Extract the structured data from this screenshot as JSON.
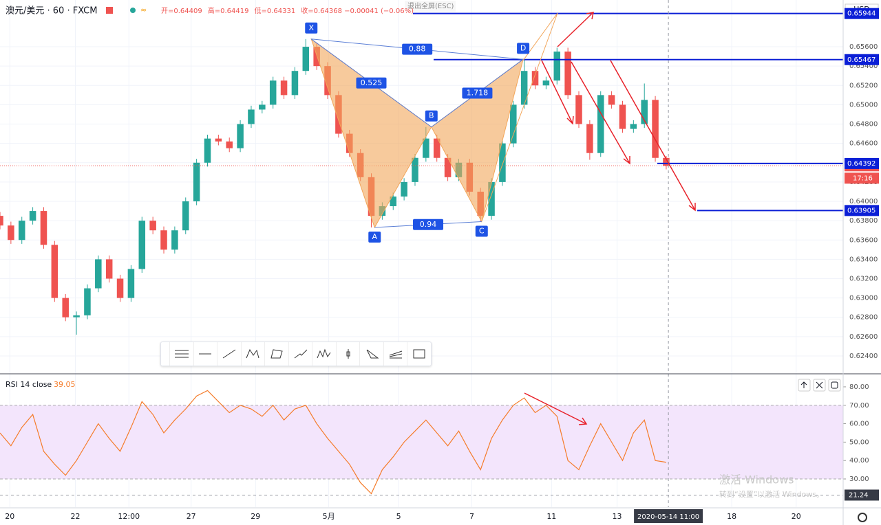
{
  "chart_data": [
    {
      "type": "candlestick",
      "title": "澳元/美元 · 60 · FXCM",
      "ohlc_text": [
        "开=0.64409",
        "高=0.64419",
        "低=0.64331",
        "收=0.64368 −0.00041 (−0.06%)"
      ],
      "exit_fullscreen": "退出全屏(ESC)",
      "currency": "USD",
      "xlim": [
        0,
        77.2
      ],
      "xticks": [
        {
          "value": 0.9,
          "label": "20"
        },
        {
          "value": 6.9,
          "label": "22"
        },
        {
          "value": 11.8,
          "label": "12:00"
        },
        {
          "value": 17.5,
          "label": "27"
        },
        {
          "value": 23.4,
          "label": "29"
        },
        {
          "value": 30.1,
          "label": "5月"
        },
        {
          "value": 36.5,
          "label": "5"
        },
        {
          "value": 43.2,
          "label": "7"
        },
        {
          "value": 50.5,
          "label": "11"
        },
        {
          "value": 56.5,
          "label": "13"
        },
        {
          "value": 67,
          "label": "18"
        },
        {
          "value": 72.9,
          "label": "20"
        }
      ],
      "ylim": [
        0.62222,
        0.66084
      ],
      "yticks": [
        {
          "value": 0.624,
          "label": "0.62400"
        },
        {
          "value": 0.626,
          "label": "0.62600"
        },
        {
          "value": 0.628,
          "label": "0.62800"
        },
        {
          "value": 0.63,
          "label": "0.63000"
        },
        {
          "value": 0.632,
          "label": "0.63200"
        },
        {
          "value": 0.634,
          "label": "0.63400"
        },
        {
          "value": 0.636,
          "label": "0.63600"
        },
        {
          "value": 0.638,
          "label": "0.63800"
        },
        {
          "value": 0.64,
          "label": "0.64000"
        },
        {
          "value": 0.642,
          "label": "0.64200"
        },
        {
          "value": 0.644,
          "label": "0.64400"
        },
        {
          "value": 0.646,
          "label": "0.64600"
        },
        {
          "value": 0.648,
          "label": "0.64800"
        },
        {
          "value": 0.65,
          "label": "0.65000"
        },
        {
          "value": 0.652,
          "label": "0.65200"
        },
        {
          "value": 0.654,
          "label": "0.65400"
        },
        {
          "value": 0.656,
          "label": "0.65600"
        }
      ],
      "grid": true,
      "up_color": "#26a69a",
      "down_color": "#ef5350",
      "open": [
        0.6385,
        0.6375,
        0.636,
        0.638,
        0.639,
        0.6355,
        0.63,
        0.628,
        0.6282,
        0.631,
        0.634,
        0.632,
        0.63,
        0.633,
        0.638,
        0.637,
        0.635,
        0.637,
        0.64,
        0.644,
        0.6465,
        0.6462,
        0.6455,
        0.648,
        0.6495,
        0.65,
        0.6525,
        0.651,
        0.6535,
        0.656,
        0.654,
        0.651,
        0.647,
        0.645,
        0.6425,
        0.6385,
        0.6395,
        0.6405,
        0.642,
        0.6445,
        0.6465,
        0.6445,
        0.6425,
        0.644,
        0.641,
        0.6385,
        0.642,
        0.646,
        0.65,
        0.6535,
        0.652,
        0.6525,
        0.6555,
        0.651,
        0.648,
        0.645,
        0.651,
        0.65,
        0.6475,
        0.648,
        0.6505,
        0.6445
      ],
      "high": [
        0.6389,
        0.6379,
        0.6384,
        0.6394,
        0.6394,
        0.6359,
        0.6304,
        0.6286,
        0.6314,
        0.6344,
        0.6344,
        0.6324,
        0.6334,
        0.6384,
        0.6384,
        0.6374,
        0.6374,
        0.6404,
        0.6444,
        0.6469,
        0.6469,
        0.6466,
        0.6484,
        0.6499,
        0.6504,
        0.6529,
        0.6529,
        0.6539,
        0.6568,
        0.6564,
        0.6544,
        0.6514,
        0.6474,
        0.6454,
        0.6429,
        0.6399,
        0.6409,
        0.6424,
        0.6449,
        0.6477,
        0.6469,
        0.6449,
        0.6444,
        0.6444,
        0.6414,
        0.6424,
        0.6464,
        0.6504,
        0.6547,
        0.6539,
        0.6529,
        0.6559,
        0.6559,
        0.6514,
        0.6484,
        0.6514,
        0.6514,
        0.6504,
        0.6484,
        0.6522,
        0.6509,
        0.6447
      ],
      "low": [
        0.6371,
        0.6356,
        0.6356,
        0.6376,
        0.6351,
        0.6296,
        0.6276,
        0.6262,
        0.6278,
        0.6306,
        0.6316,
        0.6296,
        0.6296,
        0.6326,
        0.6366,
        0.6346,
        0.6346,
        0.6366,
        0.6396,
        0.6436,
        0.6458,
        0.6451,
        0.6451,
        0.6476,
        0.6491,
        0.6496,
        0.6506,
        0.6506,
        0.6531,
        0.6536,
        0.6506,
        0.6466,
        0.6446,
        0.6421,
        0.6373,
        0.6381,
        0.6391,
        0.6401,
        0.6416,
        0.6441,
        0.6441,
        0.6421,
        0.6421,
        0.6406,
        0.6379,
        0.6381,
        0.6416,
        0.6456,
        0.6496,
        0.6516,
        0.6516,
        0.6521,
        0.6506,
        0.6476,
        0.6443,
        0.6446,
        0.6496,
        0.6471,
        0.6471,
        0.6476,
        0.6441,
        0.64331
      ],
      "close": [
        0.6375,
        0.636,
        0.638,
        0.639,
        0.6355,
        0.63,
        0.628,
        0.6282,
        0.631,
        0.634,
        0.632,
        0.63,
        0.633,
        0.638,
        0.637,
        0.635,
        0.637,
        0.64,
        0.644,
        0.6465,
        0.6462,
        0.6455,
        0.648,
        0.6495,
        0.65,
        0.6525,
        0.651,
        0.6535,
        0.656,
        0.654,
        0.651,
        0.647,
        0.645,
        0.6425,
        0.6385,
        0.6395,
        0.6405,
        0.642,
        0.6445,
        0.6465,
        0.6445,
        0.6425,
        0.644,
        0.641,
        0.6385,
        0.642,
        0.646,
        0.65,
        0.6535,
        0.652,
        0.6525,
        0.6555,
        0.651,
        0.648,
        0.645,
        0.651,
        0.65,
        0.6475,
        0.648,
        0.6505,
        0.6445,
        0.64368
      ],
      "last_price": 0.64368,
      "countdown": "17:16",
      "levels": [
        0.65944,
        0.65467,
        0.64392,
        0.63905
      ],
      "level_color": "#0b1fd6",
      "pattern": {
        "color": "#f2a65a",
        "label_color": "#1e53e5",
        "points": [
          {
            "label": "X",
            "x": 28.5,
            "y": 0.6568
          },
          {
            "label": "A",
            "x": 34.3,
            "y": 0.6373
          },
          {
            "label": "B",
            "x": 39.5,
            "y": 0.6477
          },
          {
            "label": "C",
            "x": 44.1,
            "y": 0.6379
          },
          {
            "label": "D",
            "x": 47.9,
            "y": 0.6547
          }
        ],
        "ratios": [
          0.88,
          0.525,
          1.718,
          0.94
        ]
      },
      "crosshair_x": 61.2,
      "crosshair_label": "2020-05-14   11:00"
    },
    {
      "type": "line",
      "title": "RSI 14 close",
      "color": "#f57c2a",
      "values": [
        55,
        48,
        58,
        65,
        45,
        38,
        32,
        40,
        50,
        60,
        52,
        45,
        58,
        72,
        65,
        55,
        62,
        68,
        75,
        78,
        72,
        66,
        70,
        68,
        64,
        70,
        62,
        68,
        70,
        60,
        52,
        45,
        38,
        28,
        22,
        35,
        42,
        50,
        56,
        62,
        55,
        48,
        56,
        45,
        35,
        52,
        62,
        70,
        74,
        66,
        70,
        64,
        40,
        35,
        48,
        60,
        50,
        40,
        55,
        62,
        40,
        39.05
      ],
      "ylim": [
        14.7,
        86.7
      ],
      "yticks": [
        {
          "value": 30,
          "label": "30.00"
        },
        {
          "value": 40,
          "label": "40.00"
        },
        {
          "value": 50,
          "label": "50.00"
        },
        {
          "value": 60,
          "label": "60.00"
        },
        {
          "value": 70,
          "label": "70.00"
        },
        {
          "value": 80,
          "label": "80.00"
        }
      ],
      "band": [
        30,
        70
      ],
      "band_color": "#f3e5fc",
      "crosshair_value": 21.24
    }
  ],
  "watermark": {
    "title": "激活 Windows",
    "subtitle": "转到“设置”以激活 Windows。"
  }
}
